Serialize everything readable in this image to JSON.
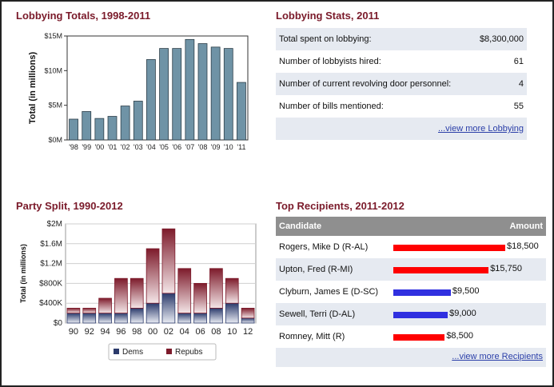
{
  "lobbying_totals": {
    "title": "Lobbying Totals, 1998-2011"
  },
  "lobbying_stats": {
    "title": "Lobbying Stats, 2011",
    "rows": [
      {
        "label": "Total spent on lobbying:",
        "value": "$8,300,000"
      },
      {
        "label": "Number of lobbyists hired:",
        "value": "61"
      },
      {
        "label": "Number of current revolving door personnel:",
        "value": "4"
      },
      {
        "label": "Number of bills mentioned:",
        "value": "55"
      }
    ],
    "more_link": "...view more Lobbying"
  },
  "party_split": {
    "title": "Party Split, 1990-2012"
  },
  "top_recipients": {
    "title": "Top Recipients, 2011-2012",
    "col_candidate": "Candidate",
    "col_amount": "Amount",
    "more_link": "...view more Recipients"
  },
  "colors": {
    "title": "#7a1a2a",
    "bar_lobby": "#6f93a6",
    "dems": "#2b3a6b",
    "repubs": "#7d1b2b",
    "recip_red": "#ff0000",
    "recip_blue": "#3030e0"
  },
  "chart_data": [
    {
      "type": "bar",
      "title": "Lobbying Totals, 1998-2011",
      "ylabel": "Total (in millions)",
      "categories": [
        "'98",
        "'99",
        "'00",
        "'01",
        "'02",
        "'03",
        "'04",
        "'05",
        "'06",
        "'07",
        "'08",
        "'09",
        "'10",
        "'11"
      ],
      "values": [
        3.0,
        4.1,
        3.1,
        3.4,
        4.9,
        5.6,
        11.6,
        13.2,
        13.2,
        14.5,
        13.9,
        13.4,
        13.2,
        8.3
      ],
      "ylim": [
        0,
        15
      ],
      "yticks": [
        0,
        5,
        10,
        15
      ],
      "ytick_labels": [
        "$0M",
        "$5M",
        "$10M",
        "$15M"
      ]
    },
    {
      "type": "bar",
      "stacked": true,
      "title": "Party Split, 1990-2012",
      "ylabel": "Total (in millions)",
      "categories": [
        "90",
        "92",
        "94",
        "96",
        "98",
        "00",
        "02",
        "04",
        "06",
        "08",
        "10",
        "12"
      ],
      "series": [
        {
          "name": "Dems",
          "values": [
            0.2,
            0.2,
            0.2,
            0.2,
            0.3,
            0.4,
            0.6,
            0.2,
            0.2,
            0.3,
            0.4,
            0.1
          ]
        },
        {
          "name": "Repubs",
          "values": [
            0.1,
            0.1,
            0.3,
            0.7,
            0.6,
            1.1,
            1.3,
            0.9,
            0.6,
            0.8,
            0.5,
            0.2
          ]
        }
      ],
      "ylim": [
        0,
        2.0
      ],
      "yticks": [
        0,
        0.4,
        0.8,
        1.2,
        1.6,
        2.0
      ],
      "ytick_labels": [
        "$0",
        "$400K",
        "$800K",
        "$1.2M",
        "$1.6M",
        "$2M"
      ],
      "legend": "bottom"
    },
    {
      "type": "bar",
      "orientation": "horizontal",
      "title": "Top Recipients, 2011-2012",
      "categories": [
        "Rogers, Mike D (R-AL)",
        "Upton, Fred (R-MI)",
        "Clyburn, James E (D-SC)",
        "Sewell, Terri (D-AL)",
        "Romney, Mitt (R)"
      ],
      "values": [
        18500,
        15750,
        9500,
        9000,
        8500
      ],
      "value_labels": [
        "$18,500",
        "$15,750",
        "$9,500",
        "$9,000",
        "$8,500"
      ],
      "parties": [
        "R",
        "R",
        "D",
        "D",
        "R"
      ]
    }
  ]
}
